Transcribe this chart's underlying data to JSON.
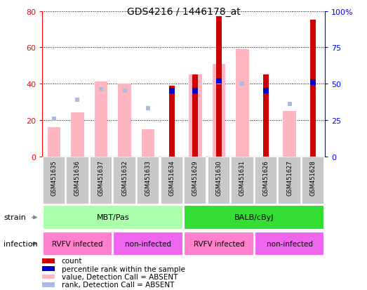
{
  "title": "GDS4216 / 1446178_at",
  "samples": [
    "GSM451635",
    "GSM451636",
    "GSM451637",
    "GSM451632",
    "GSM451633",
    "GSM451634",
    "GSM451629",
    "GSM451630",
    "GSM451631",
    "GSM451626",
    "GSM451627",
    "GSM451628"
  ],
  "count": [
    null,
    null,
    null,
    null,
    null,
    39,
    45,
    77,
    null,
    45,
    null,
    75
  ],
  "value_absent": [
    16,
    24,
    41,
    40,
    15,
    null,
    45,
    51,
    59,
    null,
    25,
    null
  ],
  "rank_absent": [
    26,
    39,
    46,
    45,
    33,
    45,
    null,
    51,
    50,
    45,
    36,
    51
  ],
  "percentile_rank": [
    null,
    null,
    null,
    null,
    null,
    45,
    45,
    52,
    null,
    45,
    null,
    51
  ],
  "ylim_left": [
    0,
    80
  ],
  "ylim_right": [
    0,
    100
  ],
  "yticks_left": [
    0,
    20,
    40,
    60,
    80
  ],
  "yticks_right": [
    0,
    25,
    50,
    75,
    100
  ],
  "ytick_labels_right": [
    "0",
    "25",
    "50",
    "75",
    "100%"
  ],
  "strain_groups": [
    {
      "label": "MBT/Pas",
      "start": 0,
      "end": 6,
      "color": "#AAFFAA"
    },
    {
      "label": "BALB/cByJ",
      "start": 6,
      "end": 12,
      "color": "#33DD33"
    }
  ],
  "infection_groups": [
    {
      "label": "RVFV infected",
      "start": 0,
      "end": 3,
      "color": "#FF80CC"
    },
    {
      "label": "non-infected",
      "start": 3,
      "end": 6,
      "color": "#EE66EE"
    },
    {
      "label": "RVFV infected",
      "start": 6,
      "end": 9,
      "color": "#FF80CC"
    },
    {
      "label": "non-infected",
      "start": 9,
      "end": 12,
      "color": "#EE66EE"
    }
  ],
  "color_count": "#CC0000",
  "color_value_absent": "#FFB6C1",
  "color_rank_absent": "#AABBDD",
  "color_percentile": "#0000CC",
  "legend_items": [
    {
      "color": "#CC0000",
      "label": "count"
    },
    {
      "color": "#0000CC",
      "label": "percentile rank within the sample"
    },
    {
      "color": "#FFB6C1",
      "label": "value, Detection Call = ABSENT"
    },
    {
      "color": "#AABBDD",
      "label": "rank, Detection Call = ABSENT"
    }
  ]
}
